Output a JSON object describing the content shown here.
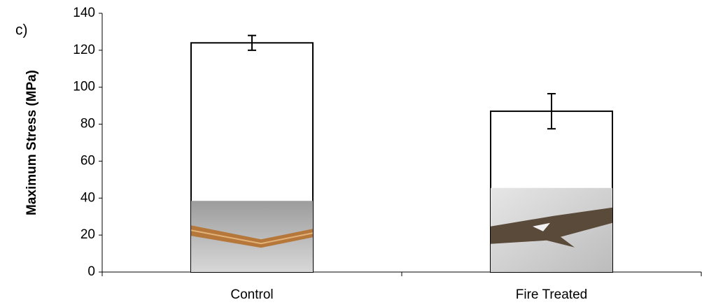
{
  "chart_data": {
    "type": "bar",
    "annotation": "c)",
    "y_label": "Maximum Stress (MPa)",
    "categories": [
      "Control",
      "Fire Treated"
    ],
    "values": [
      124,
      87
    ],
    "errors": [
      4,
      9.5
    ],
    "color": "#ffffff",
    "ylim": [
      0,
      140
    ],
    "yticks": [
      0,
      20,
      40,
      60,
      80,
      100,
      120,
      140
    ],
    "grid": false
  }
}
